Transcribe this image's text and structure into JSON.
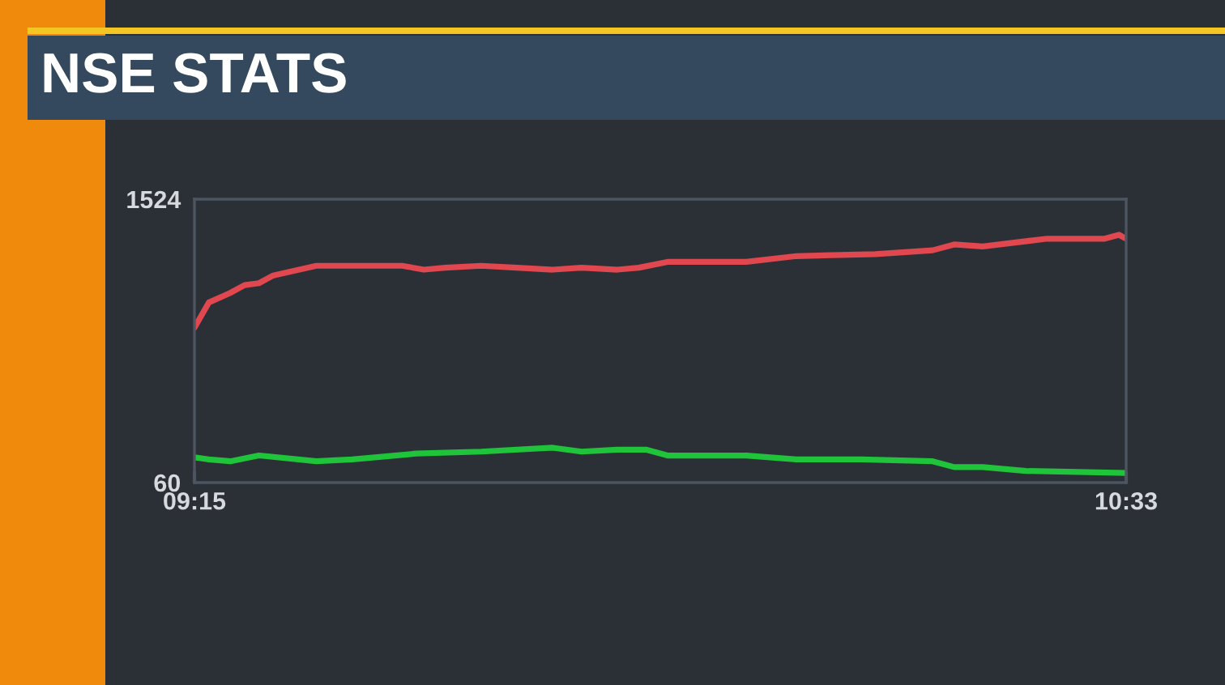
{
  "chart_data": {
    "type": "line",
    "title": "NSE STATS",
    "xlim": [
      9.25,
      10.55
    ],
    "xticks": [
      {
        "value": 9.25,
        "label": "09:15"
      },
      {
        "value": 10.55,
        "label": "10:33"
      }
    ],
    "ylim": [
      60,
      1524
    ],
    "yticks": [
      60,
      1524
    ],
    "series": [
      {
        "color": "#e0474f",
        "x": [
          9.25,
          9.27,
          9.3,
          9.32,
          9.34,
          9.36,
          9.42,
          9.49,
          9.54,
          9.57,
          9.6,
          9.65,
          9.7,
          9.75,
          9.79,
          9.84,
          9.87,
          9.91,
          10.02,
          10.09,
          10.2,
          10.28,
          10.31,
          10.35,
          10.44,
          10.52,
          10.54,
          10.55
        ],
        "values": [
          860,
          990,
          1040,
          1080,
          1090,
          1130,
          1180,
          1180,
          1180,
          1160,
          1170,
          1180,
          1170,
          1160,
          1170,
          1160,
          1170,
          1200,
          1200,
          1230,
          1240,
          1260,
          1290,
          1280,
          1320,
          1320,
          1340,
          1320
        ]
      },
      {
        "color": "#1fc43a",
        "x": [
          9.25,
          9.27,
          9.3,
          9.34,
          9.42,
          9.47,
          9.56,
          9.65,
          9.75,
          9.79,
          9.84,
          9.88,
          9.91,
          10.02,
          10.09,
          10.18,
          10.28,
          10.31,
          10.35,
          10.41,
          10.55
        ],
        "values": [
          190,
          180,
          170,
          200,
          170,
          180,
          210,
          220,
          240,
          220,
          230,
          230,
          200,
          200,
          180,
          180,
          170,
          140,
          140,
          120,
          110
        ]
      }
    ]
  }
}
